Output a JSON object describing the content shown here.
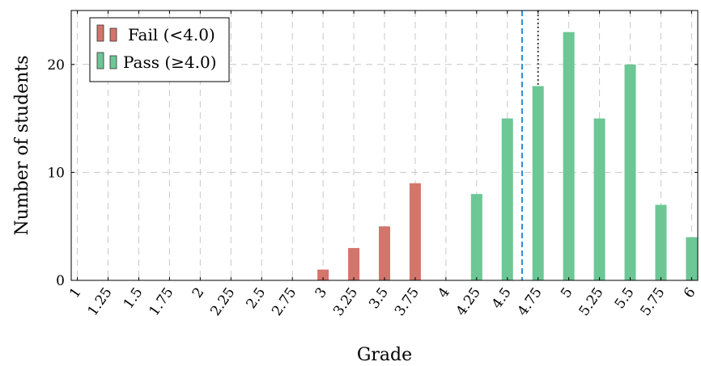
{
  "chart_data": {
    "type": "bar",
    "xlabel": "Grade",
    "ylabel": "Number of students",
    "x_ticks": [
      "1",
      "1.25",
      "1.5",
      "1.75",
      "2",
      "2.25",
      "2.5",
      "2.75",
      "3",
      "3.25",
      "3.5",
      "3.75",
      "4",
      "4.25",
      "4.5",
      "4.75",
      "5",
      "5.25",
      "5.5",
      "5.75",
      "6"
    ],
    "y_ticks": [
      0,
      10,
      20
    ],
    "xlim": [
      0.95,
      6.05
    ],
    "ylim": [
      0,
      25
    ],
    "grid": true,
    "legend_position": "top-left",
    "series": [
      {
        "name": "Fail (<4.0)",
        "color": "#d4756b",
        "x": [
          3.0,
          3.25,
          3.5,
          3.75
        ],
        "values": [
          1,
          3,
          5,
          9
        ]
      },
      {
        "name": "Pass (≥4.0)",
        "color": "#6cc795",
        "x": [
          4.0,
          4.25,
          4.5,
          4.75,
          5.0,
          5.25,
          5.5,
          5.75,
          6.0
        ],
        "values": [
          0,
          8,
          15,
          18,
          23,
          15,
          20,
          7,
          4
        ]
      }
    ],
    "reference_lines": [
      {
        "x": 4.62,
        "style": "dashed",
        "color": "#2b8fd8"
      },
      {
        "x": 4.75,
        "style": "dotted",
        "color": "#444444"
      }
    ]
  }
}
